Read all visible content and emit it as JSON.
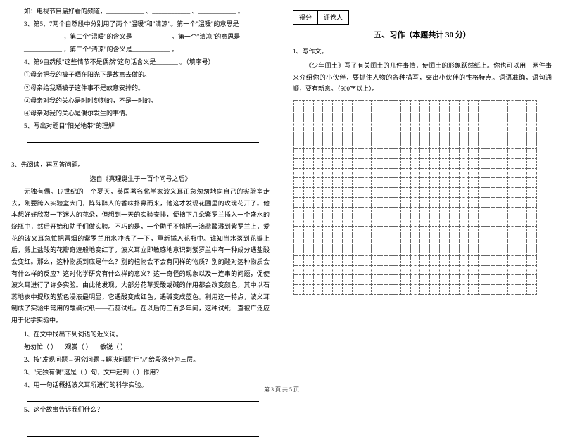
{
  "left": {
    "q2_lines": [
      "如：电视节目最好看的频道，____________ 、____________ 、____________ 。",
      "3、第5、7两个自然段中分别用了两个\"温暖\"和\"清凉\"。第一个\"温暖\"的意思是",
      "____________ ，第二个\"温暖\"的含义是____________ 。第一个\"清凉\"的意思是",
      "____________ ，第二个\"清凉\"的含义是____________ 。",
      "4、第9自然段\"这些情节不是偶然\"这句话含义是_______ 。（填序号）",
      "①母亲把我的被子晒在阳光下是故意去做的。",
      "②母亲给我晒被子这件事不是故意安排的。",
      "③母亲对我的关心是时时刻刻的，不是一时的。",
      "④母亲对我的关心是偶尔发生的事情。",
      "5、写出对题目\"阳光地带\"的理解"
    ],
    "q3_intro": "3、先阅读，再回答问题。",
    "q3_title": "选自《真理诞生于一百个问号之后》",
    "q3_body": "无独有偶。17世纪的一个夏天，英国著名化学家波义耳正急匆匆地向自己的实验室走去，刚要跨入实验室大门，阵阵醉人的香味扑鼻而来，他这才发现花圃里的玫瑰花开了。他本想好好欣赏一下迷人的花朵，但想到一天的实验安排，便摘下几朵紫罗兰插入一个盛水的烧瓶中，然后开始和助手们做实验。不巧的是，一个助手不慎把一滴盐酸溅到紫罗兰上，爱花的波义耳急忙把冒烟的紫罗兰用水冲洗了一下，重新插入花瓶中。谁知当水落到花瓣上后，溅上盐酸的花瓣奇迹般地变红了，波义耳立即敏感地意识到紫罗兰中有一种成分遇盐酸会变红。那么，这种物质到底是什么？别的植物会不会有同样的物质？别的酸对这种物质会有什么样的反应？这对化学研究有什么样的意义？这一奇怪的现象以及一连串的问题，促使波义耳进行了许多实验。由此他发现，大部分花草受酸或碱的作用都会改变颜色，其中以石蕊地衣中提取的紫色浸液最明显，它遇酸变成红色，遇碱变成蓝色。利用这一特点，波义耳制成了实验中常用的酸碱试纸——石蕊试纸。在以后的三百多年间，这种试纸一直被广泛应用于化学实验中。",
    "q3_q1": "1、在文中找出下列词语的近义词。",
    "q3_q1_words": [
      "匆匆忙（        ）",
      "观赏（        ）",
      "敏锐（        ）"
    ],
    "q3_q2": "2、按\"发现问题→研究问题→解决问题\"用\"//\"给段落分为三层。",
    "q3_q3": "3、\"无独有偶\"这是（        ）句，文中起到（        ）作用？",
    "q3_q4": "4、用一句话概括波义耳所进行的科学实验。",
    "q3_q5": "5、这个故事告诉我们什么？"
  },
  "right": {
    "score_labels": [
      "得分",
      "评卷人"
    ],
    "section_title": "五、习作（本题共计 30 分）",
    "writing_label": "1、写作文。",
    "writing_prompt": "《少年闰土》写了有关闰土的几件事情，使闰土的形象跃然纸上。你也可以用一两件事来介绍你的小伙伴，要抓住人物的各种描写，突出小伙伴的性格特点。词语准确，语句通顺，要有新意。（500字以上）。",
    "grid": {
      "rows": 20,
      "cols": 25
    }
  },
  "footer": "第 3 页 共 5 页"
}
